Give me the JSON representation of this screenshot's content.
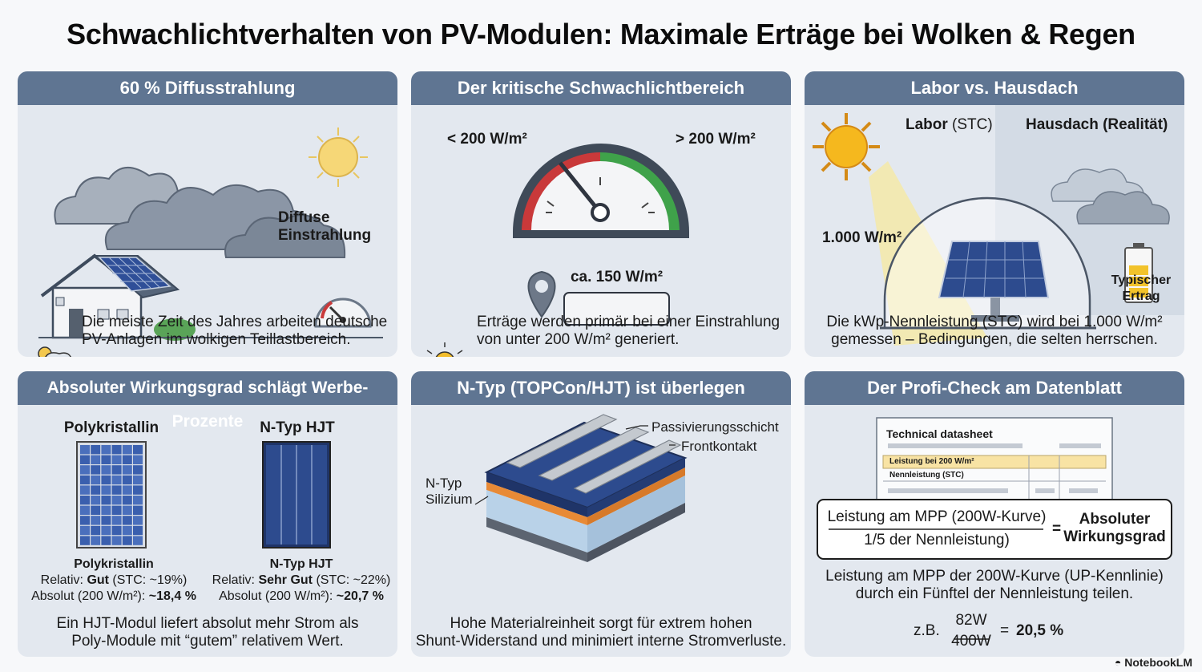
{
  "title": "Schwachlichtverhalten von PV-Modulen: Maximale Erträge bei Wolken & Regen",
  "panels": {
    "p1": {
      "header": "60 % Diffusstrahlung",
      "label_line1": "Diffuse",
      "label_line2": "Einstrahlung",
      "caption_line1": "Die meiste Zeit des Jahres arbeiten deutsche",
      "caption_line2": "PV-Anlagen im wolkigen Teillastbereich.",
      "icons": [
        "cloud-icon",
        "sun-icon",
        "house-icon",
        "solar-panel-icon",
        "gauge-icon",
        "partly-cloudy-icon"
      ]
    },
    "p2": {
      "header": "Der kritische Schwachlichtbereich",
      "left_label": "< 200 W/m²",
      "right_label": "> 200 W/m²",
      "marker_label": "ca. 150 W/m²",
      "caption_line1": "Erträge werden primär bei einer Einstrahlung",
      "caption_line2": "von unter 200 W/m² generiert.",
      "icons": [
        "gauge-icon",
        "location-pin-icon",
        "alarm-light-icon"
      ]
    },
    "p3": {
      "header": "Labor vs. Hausdach",
      "lab_bold": "Labor",
      "lab_rest": " (STC)",
      "roof_label": "Hausdach (Realität)",
      "irradiance": "1.000 W/m²",
      "yield_line1": "Typischer",
      "yield_line2": "Ertrag",
      "caption_line1": "Die kWp-Nennleistung (STC) wird bei 1.000 W/m²",
      "caption_line2": "gemessen – Bedingungen, die selten herrschen.",
      "icons": [
        "sun-icon",
        "glass-dome-icon",
        "solar-panel-icon",
        "cloud-icon",
        "battery-icon"
      ]
    },
    "p4": {
      "header": "Absoluter Wirkungsgrad schlägt Werbe-Prozente",
      "left_title": "Polykristallin",
      "right_title": "N-Typ HJT",
      "left_name": "Polykristallin",
      "left_rel_prefix": "Relativ: ",
      "left_rel_bold": "Gut",
      "left_rel_suffix": " (STC: ~19%)",
      "left_abs_prefix": "Absolut (200 W/m²): ",
      "left_abs_bold": "~18,4 %",
      "right_name": "N-Typ HJT",
      "right_rel_prefix": "Relativ: ",
      "right_rel_bold": "Sehr Gut",
      "right_rel_suffix": " (STC: ~22%)",
      "right_abs_prefix": "Absolut (200 W/m²): ",
      "right_abs_bold": "~20,7 %",
      "caption_line1": "Ein HJT-Modul liefert absolut mehr Strom als",
      "caption_line2": "Poly-Module mit “gutem” relativem Wert."
    },
    "p5": {
      "header": "N-Typ (TOPCon/HJT) ist überlegen",
      "label_passivation": "Passivierungsschicht",
      "label_front": "Frontkontakt",
      "label_ntype_line1": "N-Typ",
      "label_ntype_line2": "Silizium",
      "caption_line1": "Hohe Materialreinheit sorgt für extrem hohen",
      "caption_line2": "Shunt-Widerstand und minimiert interne Stromverluste."
    },
    "p6": {
      "header": "Der Profi-Check am Datenblatt",
      "sheet_title": "Technical datasheet",
      "row_highlight": "Leistung bei 200 W/m²",
      "row_nominal": "Nennleistung (STC)",
      "numerator": "Leistung am MPP (200W-Kurve)",
      "denominator": "1/5 der Nennleistung)",
      "equals": "=",
      "result_line1": "Absoluter",
      "result_line2": "Wirkungsgrad",
      "caption_line1": "Leistung am MPP der 200W-Kurve (UP-Kennlinie)",
      "caption_line2": "durch ein Fünftel der Nennleistung teilen.",
      "example_prefix": "z.B.",
      "example_num": "82W",
      "example_den": "400W",
      "example_eq": "=",
      "example_result": "20,5 %"
    }
  },
  "footer": "NotebookLM",
  "colors": {
    "header": "#5f7592",
    "panel": "#e3e8ef",
    "gauge_red": "#c9393a",
    "gauge_green": "#3fa24a",
    "sun": "#f2b21b",
    "module": "#2d4b8e"
  }
}
